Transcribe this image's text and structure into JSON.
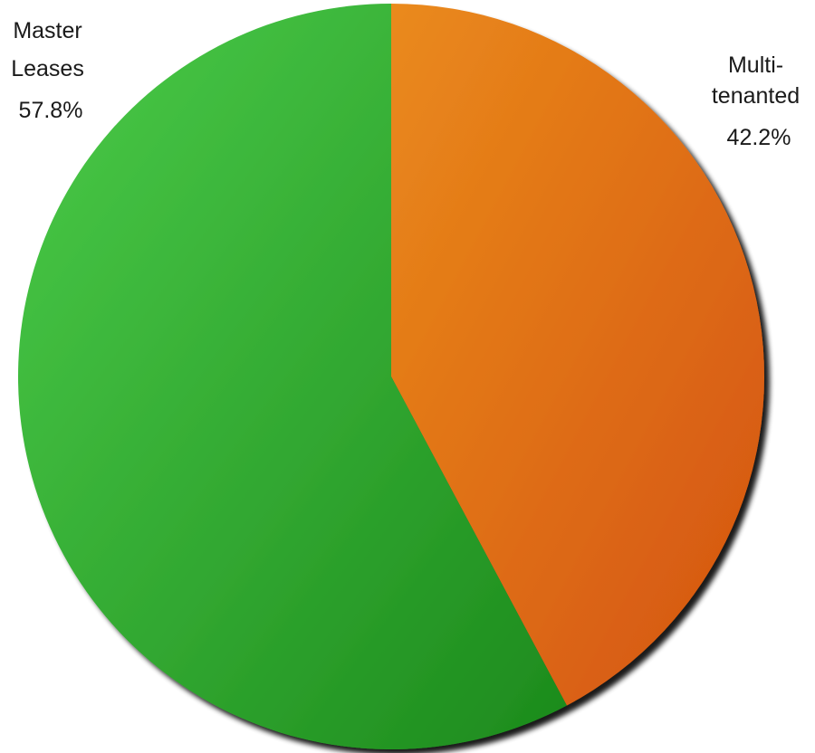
{
  "chart_data": {
    "type": "pie",
    "slices": [
      {
        "label_lines": [
          "Multi-",
          "tenanted"
        ],
        "value_label": "42.2%",
        "value": 42.2,
        "color_start": "#ea8a1c",
        "color_end": "#d4530f"
      },
      {
        "label_lines": [
          "Master",
          "Leases"
        ],
        "value_label": "57.8%",
        "value": 57.8,
        "color_start": "#4ccc4a",
        "color_end": "#1c8a1c"
      }
    ],
    "start_angle": "12 o'clock",
    "direction": "clockwise",
    "legend": "none",
    "labels": "outside"
  }
}
